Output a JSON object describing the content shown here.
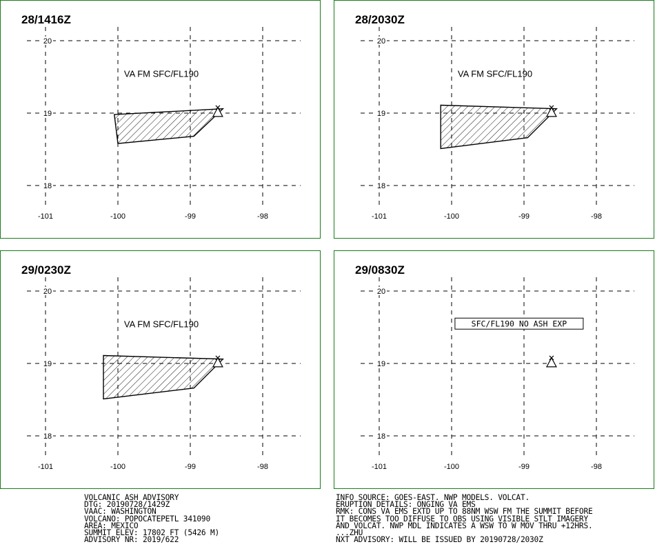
{
  "panels": [
    {
      "id": "p1",
      "time_label": "28/1416Z",
      "label": "VA FM SFC/FL190",
      "label_boxed": false,
      "polygon_lonlat": [
        [
          -100.05,
          18.98
        ],
        [
          -98.55,
          19.06
        ],
        [
          -98.95,
          18.68
        ],
        [
          -100.0,
          18.58
        ]
      ],
      "volcano": [
        -98.62,
        19.02
      ]
    },
    {
      "id": "p2",
      "time_label": "28/2030Z",
      "label": "VA FM SFC/FL190",
      "label_boxed": false,
      "polygon_lonlat": [
        [
          -100.15,
          19.11
        ],
        [
          -98.55,
          19.06
        ],
        [
          -98.95,
          18.66
        ],
        [
          -100.15,
          18.51
        ]
      ],
      "volcano": [
        -98.62,
        19.02
      ]
    },
    {
      "id": "p3",
      "time_label": "29/0230Z",
      "label": "VA FM SFC/FL190",
      "label_boxed": false,
      "polygon_lonlat": [
        [
          -100.2,
          19.11
        ],
        [
          -98.55,
          19.06
        ],
        [
          -98.95,
          18.66
        ],
        [
          -100.2,
          18.51
        ]
      ],
      "volcano": [
        -98.62,
        19.02
      ]
    },
    {
      "id": "p4",
      "time_label": "29/0830Z",
      "label": "SFC/FL190 NO ASH EXP",
      "label_boxed": true,
      "polygon_lonlat": [],
      "volcano": [
        -98.62,
        19.02
      ]
    }
  ],
  "axes": {
    "lat_ticks": [
      "20",
      "19",
      "18"
    ],
    "lon_ticks": [
      "-101",
      "-100",
      "-99",
      "-98"
    ]
  },
  "advisory_left": [
    "VOLCANIC ASH ADVISORY",
    "DTG: 20190728/1429Z",
    "VAAC: WASHINGTON",
    "VOLCANO: POPOCATEPETL 341090",
    "AREA: MEXICO",
    "SUMMIT ELEV: 17802 FT (5426 M)",
    "ADVISORY NR: 2019/622"
  ],
  "advisory_right": [
    "INFO SOURCE: GOES-EAST. NWP MODELS. VOLCAT.",
    "ERUPTION DETAILS: ONGING VA EMS",
    "RMK: CONS VA EMS EXTD UP TO 88NM WSW FM THE SUMMIT BEFORE",
    "IT BECOMES TOO DIFFUSE TO OBS USING VISIBLE STLT IMAGERY",
    "AND VOLCAT. NWP MDL INDICATES A WSW TO W MOV THRU +12HRS.",
    "...ZHU",
    "NXT ADVISORY: WILL BE ISSUED BY 20190728/2030Z"
  ],
  "colors": {
    "panel_border": "#1a7a1a",
    "grid": "#000000",
    "hatch": "#000000"
  }
}
